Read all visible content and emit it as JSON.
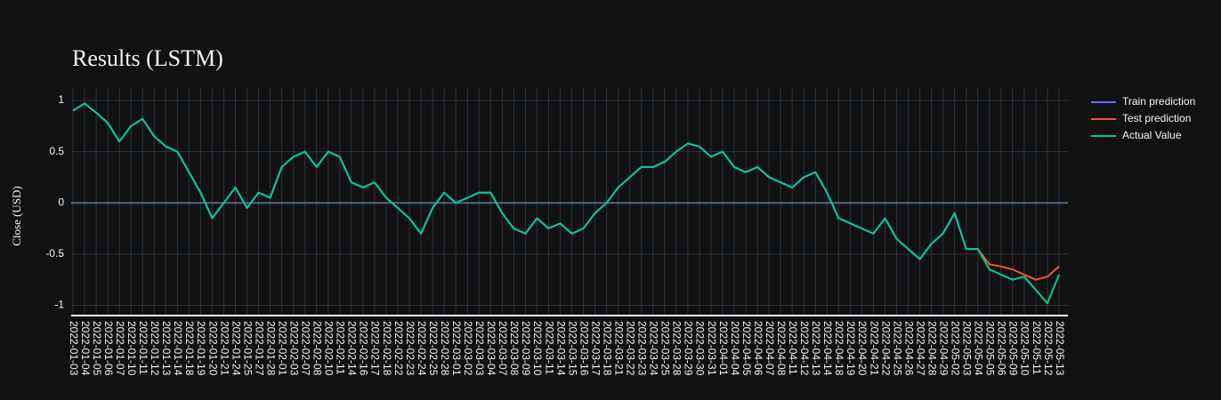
{
  "chart_data": {
    "type": "line",
    "title": "Results (LSTM)",
    "y_label": "Close (USD)",
    "categories": [
      "2022-01-03",
      "2022-01-04",
      "2022-01-05",
      "2022-01-06",
      "2022-01-07",
      "2022-01-10",
      "2022-01-11",
      "2022-01-12",
      "2022-01-13",
      "2022-01-14",
      "2022-01-18",
      "2022-01-19",
      "2022-01-20",
      "2022-01-21",
      "2022-01-24",
      "2022-01-25",
      "2022-01-27",
      "2022-01-28",
      "2022-02-01",
      "2022-02-03",
      "2022-02-07",
      "2022-02-08",
      "2022-02-10",
      "2022-02-11",
      "2022-02-14",
      "2022-02-16",
      "2022-02-17",
      "2022-02-18",
      "2022-02-22",
      "2022-02-23",
      "2022-02-24",
      "2022-02-25",
      "2022-02-28",
      "2022-03-01",
      "2022-03-02",
      "2022-03-03",
      "2022-03-04",
      "2022-03-07",
      "2022-03-08",
      "2022-03-09",
      "2022-03-10",
      "2022-03-11",
      "2022-03-14",
      "2022-03-15",
      "2022-03-16",
      "2022-03-17",
      "2022-03-18",
      "2022-03-21",
      "2022-03-22",
      "2022-03-23",
      "2022-03-24",
      "2022-03-25",
      "2022-03-28",
      "2022-03-29",
      "2022-03-30",
      "2022-03-31",
      "2022-04-01",
      "2022-04-04",
      "2022-04-05",
      "2022-04-06",
      "2022-04-07",
      "2022-04-08",
      "2022-04-11",
      "2022-04-12",
      "2022-04-13",
      "2022-04-14",
      "2022-04-18",
      "2022-04-19",
      "2022-04-20",
      "2022-04-21",
      "2022-04-22",
      "2022-04-25",
      "2022-04-26",
      "2022-04-27",
      "2022-04-28",
      "2022-04-29",
      "2022-05-02",
      "2022-05-03",
      "2022-05-04",
      "2022-05-05",
      "2022-05-06",
      "2022-05-09",
      "2022-05-10",
      "2022-05-11",
      "2022-05-12",
      "2022-05-13"
    ],
    "series": [
      {
        "name": "Train prediction",
        "color": "#636efa",
        "values": [
          0.9,
          0.97,
          0.88,
          0.78,
          0.6,
          0.75,
          0.82,
          0.65,
          0.55,
          0.5,
          0.3,
          0.1,
          -0.15,
          0.0,
          0.15,
          -0.05,
          0.1,
          0.05,
          0.35,
          0.45,
          0.5,
          0.35,
          0.5,
          0.45,
          0.2,
          0.15,
          0.2,
          0.05,
          -0.05,
          -0.15,
          -0.3,
          -0.05,
          0.1,
          0.0,
          0.05,
          0.1,
          0.1,
          -0.1,
          -0.25,
          -0.3,
          -0.15,
          -0.25,
          -0.2,
          -0.3,
          -0.25,
          -0.1,
          0.0,
          0.15,
          0.25,
          0.35,
          0.35,
          0.4,
          0.5,
          0.58,
          0.55,
          0.45,
          0.5,
          0.35,
          0.3,
          0.35,
          0.25,
          0.2,
          0.15,
          0.25,
          0.3,
          0.1,
          -0.15,
          -0.2,
          -0.25,
          -0.3,
          -0.15,
          -0.35,
          -0.45,
          -0.55,
          -0.4,
          -0.3,
          -0.1,
          -0.45,
          -0.45,
          null,
          null,
          null,
          null,
          null,
          null,
          null
        ]
      },
      {
        "name": "Test prediction",
        "color": "#ef553b",
        "values": [
          null,
          null,
          null,
          null,
          null,
          null,
          null,
          null,
          null,
          null,
          null,
          null,
          null,
          null,
          null,
          null,
          null,
          null,
          null,
          null,
          null,
          null,
          null,
          null,
          null,
          null,
          null,
          null,
          null,
          null,
          null,
          null,
          null,
          null,
          null,
          null,
          null,
          null,
          null,
          null,
          null,
          null,
          null,
          null,
          null,
          null,
          null,
          null,
          null,
          null,
          null,
          null,
          null,
          null,
          null,
          null,
          null,
          null,
          null,
          null,
          null,
          null,
          null,
          null,
          null,
          null,
          null,
          null,
          null,
          null,
          null,
          null,
          null,
          null,
          null,
          null,
          null,
          null,
          -0.45,
          -0.6,
          -0.62,
          -0.65,
          -0.7,
          -0.75,
          -0.72,
          -0.62
        ]
      },
      {
        "name": "Actual Value",
        "color": "#00cc96",
        "values": [
          0.9,
          0.97,
          0.88,
          0.78,
          0.6,
          0.75,
          0.82,
          0.65,
          0.55,
          0.5,
          0.3,
          0.1,
          -0.15,
          0.0,
          0.15,
          -0.05,
          0.1,
          0.05,
          0.35,
          0.45,
          0.5,
          0.35,
          0.5,
          0.45,
          0.2,
          0.15,
          0.2,
          0.05,
          -0.05,
          -0.15,
          -0.3,
          -0.05,
          0.1,
          0.0,
          0.05,
          0.1,
          0.1,
          -0.1,
          -0.25,
          -0.3,
          -0.15,
          -0.25,
          -0.2,
          -0.3,
          -0.25,
          -0.1,
          0.0,
          0.15,
          0.25,
          0.35,
          0.35,
          0.4,
          0.5,
          0.58,
          0.55,
          0.45,
          0.5,
          0.35,
          0.3,
          0.35,
          0.25,
          0.2,
          0.15,
          0.25,
          0.3,
          0.1,
          -0.15,
          -0.2,
          -0.25,
          -0.3,
          -0.15,
          -0.35,
          -0.45,
          -0.55,
          -0.4,
          -0.3,
          -0.1,
          -0.45,
          -0.45,
          -0.65,
          -0.7,
          -0.75,
          -0.72,
          -0.85,
          -0.98,
          -0.7
        ]
      }
    ],
    "ylim": [
      -1.1,
      1.13
    ],
    "yticks": [
      -1,
      -0.5,
      0,
      0.5,
      1
    ],
    "grid": true,
    "legend": "right"
  }
}
